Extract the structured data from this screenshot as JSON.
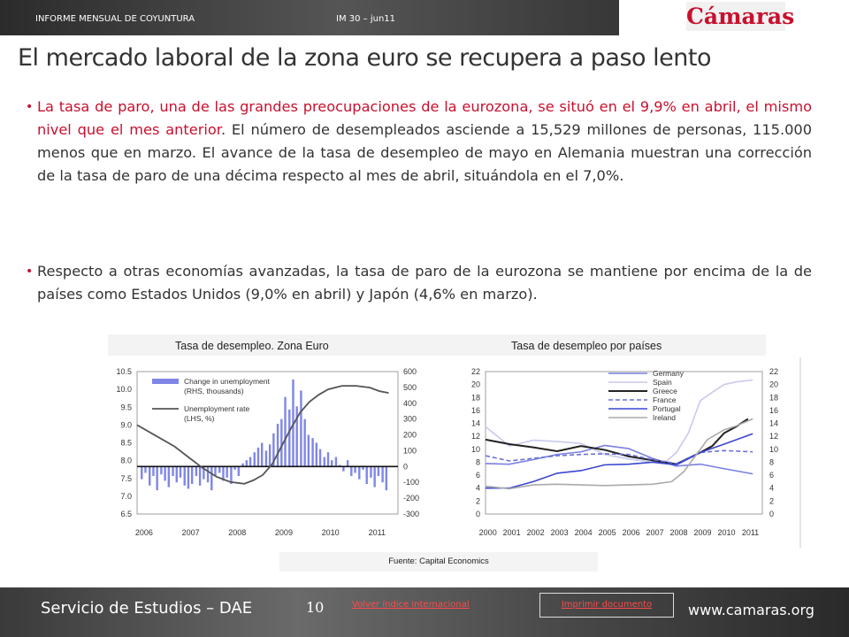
{
  "header": {
    "left": "INFORME MENSUAL DE COYUNTURA",
    "center": "IM 30 – jun11",
    "logo": "Cámaras"
  },
  "title": "El mercado laboral de la zona euro se recupera a paso lento",
  "paragraphs": [
    {
      "highlight": "La tasa de paro, una de las grandes preocupaciones de la eurozona, se situó en el 9,9% en abril, el mismo nivel que el mes anterior",
      "rest": ". El número de desempleados asciende a 15,529 millones de personas, 115.000 menos que en marzo. El avance de la tasa de desempleo de mayo en Alemania muestran una corrección de la tasa de paro de una décima respecto al mes de abril, situándola en el 7,0%."
    },
    {
      "highlight": "",
      "rest": "Respecto a otras economías avanzadas, la tasa de paro de la eurozona se mantiene por encima de la de países como Estados Unidos (9,0% en abril) y Japón (4,6% en marzo)."
    }
  ],
  "charts": {
    "left_title": "Tasa de desempleo. Zona Euro",
    "right_title": "Tasa de desempleo por países",
    "source": "Fuente: Capital Economics"
  },
  "chart_data": [
    {
      "type": "bar",
      "legend": [
        "Change in unemployment (RHS, thousands)",
        "Unemployment rate (LHS, %)"
      ],
      "legend_placement": "top-left",
      "x_ticks": [
        "2006",
        "2007",
        "2008",
        "2009",
        "2010",
        "2011"
      ],
      "x_range": [
        2005.9,
        2011.5
      ],
      "y_left_ticks": [
        "10.5",
        "10.0",
        "9.5",
        "9.0",
        "8.5",
        "8.0",
        "7.5",
        "7.0",
        "6.5"
      ],
      "y_left_range": [
        6.5,
        10.5
      ],
      "y_right_ticks": [
        "600",
        "500",
        "400",
        "300",
        "200",
        "100",
        "0",
        "-100",
        "-200",
        "-300"
      ],
      "y_right_range": [
        -300,
        600
      ],
      "bars": {
        "x": [
          2006.0,
          2006.08,
          2006.17,
          2006.25,
          2006.33,
          2006.42,
          2006.5,
          2006.58,
          2006.67,
          2006.75,
          2006.83,
          2006.92,
          2007.0,
          2007.08,
          2007.17,
          2007.25,
          2007.33,
          2007.42,
          2007.5,
          2007.58,
          2007.67,
          2007.75,
          2007.83,
          2007.92,
          2008.0,
          2008.08,
          2008.17,
          2008.25,
          2008.33,
          2008.42,
          2008.5,
          2008.58,
          2008.67,
          2008.75,
          2008.83,
          2008.92,
          2009.0,
          2009.08,
          2009.17,
          2009.25,
          2009.33,
          2009.42,
          2009.5,
          2009.58,
          2009.67,
          2009.75,
          2009.83,
          2009.92,
          2010.0,
          2010.08,
          2010.17,
          2010.25,
          2010.33,
          2010.42,
          2010.5,
          2010.58,
          2010.67,
          2010.75,
          2010.83,
          2010.92,
          2011.0,
          2011.08,
          2011.17,
          2011.25
        ],
        "values": [
          -80,
          -40,
          -120,
          -60,
          -150,
          -50,
          -90,
          -130,
          -60,
          -100,
          -70,
          -120,
          -140,
          -110,
          -60,
          -120,
          -80,
          -100,
          -150,
          -60,
          -40,
          -90,
          -70,
          -110,
          -20,
          -60,
          20,
          40,
          60,
          90,
          120,
          150,
          100,
          140,
          210,
          270,
          300,
          440,
          360,
          550,
          380,
          480,
          300,
          200,
          180,
          150,
          110,
          60,
          90,
          40,
          60,
          10,
          -30,
          40,
          -60,
          -40,
          -80,
          -20,
          -110,
          -70,
          -130,
          -60,
          -100,
          -150
        ]
      },
      "line": {
        "x": [
          2005.9,
          2006.3,
          2006.7,
          2007.0,
          2007.3,
          2007.6,
          2007.9,
          2008.2,
          2008.4,
          2008.6,
          2008.8,
          2009.0,
          2009.2,
          2009.4,
          2009.6,
          2009.8,
          2010.0,
          2010.3,
          2010.6,
          2010.9,
          2011.1,
          2011.3
        ],
        "y": [
          9.0,
          8.7,
          8.4,
          8.1,
          7.8,
          7.55,
          7.4,
          7.35,
          7.45,
          7.6,
          7.9,
          8.4,
          8.9,
          9.35,
          9.65,
          9.85,
          10.0,
          10.1,
          10.1,
          10.05,
          9.95,
          9.9
        ]
      }
    },
    {
      "type": "line",
      "x_ticks": [
        "2000",
        "2001",
        "2002",
        "2003",
        "2004",
        "2005",
        "2006",
        "2007",
        "2008",
        "2009",
        "2010",
        "2011"
      ],
      "x_range": [
        2000,
        2011.6
      ],
      "y_ticks": [
        "22",
        "20",
        "18",
        "16",
        "14",
        "12",
        "10",
        "8",
        "6",
        "4",
        "2",
        "0"
      ],
      "y_range": [
        0,
        22
      ],
      "legend_placement": "top-right",
      "series": [
        {
          "name": "Germany",
          "color": "#7a7fe0",
          "dash": "solid",
          "x": [
            2000,
            2001,
            2002,
            2003,
            2004,
            2005,
            2006,
            2007,
            2008,
            2009,
            2010,
            2011.2
          ],
          "y": [
            7.8,
            7.7,
            8.4,
            9.2,
            9.6,
            10.6,
            10.1,
            8.6,
            7.4,
            7.7,
            7.0,
            6.2
          ]
        },
        {
          "name": "Spain",
          "color": "#c9c9ee",
          "dash": "solid",
          "x": [
            2000,
            2001,
            2002,
            2003,
            2004,
            2005,
            2006,
            2007,
            2007.6,
            2008,
            2008.5,
            2009,
            2009.5,
            2010,
            2010.5,
            2011.2
          ],
          "y": [
            13.5,
            10.5,
            11.4,
            11.2,
            10.9,
            9.2,
            8.5,
            8.0,
            8.2,
            9.5,
            12.5,
            17.5,
            18.8,
            20.0,
            20.4,
            20.7
          ]
        },
        {
          "name": "Greece",
          "color": "#222222",
          "dash": "solid",
          "x": [
            2000,
            2001,
            2002,
            2003,
            2004,
            2005,
            2006,
            2007,
            2008,
            2009,
            2009.5,
            2010,
            2010.5,
            2011.0
          ],
          "y": [
            11.5,
            10.8,
            10.3,
            9.7,
            10.5,
            9.9,
            8.9,
            8.3,
            7.7,
            9.5,
            10.5,
            12.5,
            13.5,
            14.7
          ]
        },
        {
          "name": "France",
          "color": "#6a70d8",
          "dash": "dashed",
          "x": [
            2000,
            2001,
            2002,
            2003,
            2004,
            2005,
            2006,
            2007,
            2008,
            2009,
            2010,
            2011.2
          ],
          "y": [
            9.0,
            8.2,
            8.6,
            9.0,
            9.2,
            9.3,
            9.2,
            8.4,
            7.8,
            9.5,
            9.8,
            9.6
          ]
        },
        {
          "name": "Portugal",
          "color": "#3a46d0",
          "dash": "solid",
          "x": [
            2000,
            2001,
            2002,
            2003,
            2004,
            2005,
            2006,
            2007,
            2008,
            2009,
            2010,
            2011.2
          ],
          "y": [
            4.0,
            4.0,
            5.0,
            6.3,
            6.7,
            7.6,
            7.7,
            8.0,
            7.6,
            9.5,
            10.8,
            12.4
          ]
        },
        {
          "name": "Ireland",
          "color": "#aaaaaa",
          "dash": "solid",
          "x": [
            2000,
            2001,
            2002,
            2003,
            2004,
            2005,
            2006,
            2007,
            2007.8,
            2008.3,
            2008.8,
            2009.3,
            2010,
            2010.5,
            2011.2
          ],
          "y": [
            4.3,
            3.9,
            4.5,
            4.6,
            4.5,
            4.4,
            4.5,
            4.6,
            5.0,
            6.5,
            9.0,
            11.5,
            13.0,
            13.6,
            14.7
          ]
        }
      ]
    }
  ],
  "footer": {
    "service": "Servicio de Estudios – DAE",
    "page": "10",
    "back_link": "Volver índice internacional",
    "print_link": "Imprimir documento",
    "web": "www.camaras.org"
  }
}
